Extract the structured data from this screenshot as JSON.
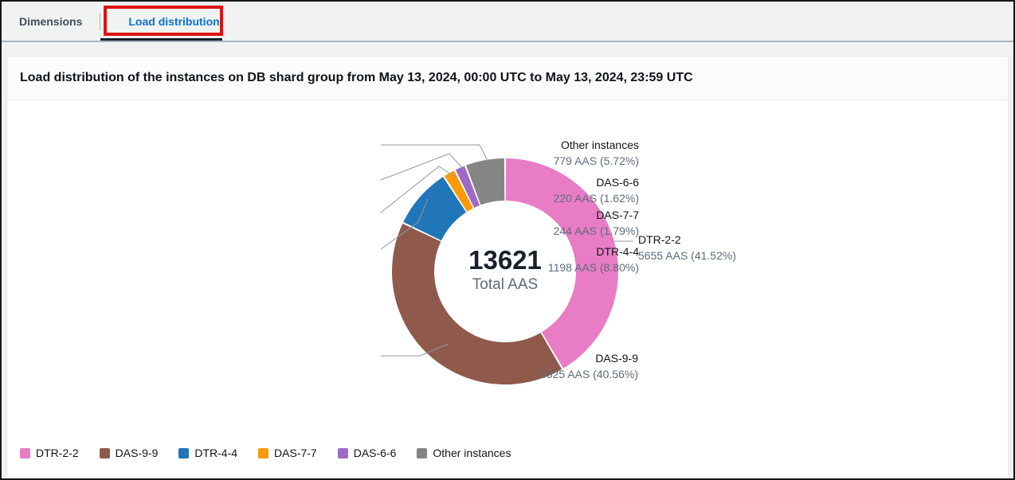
{
  "tabs": [
    {
      "label": "Dimensions",
      "active": false
    },
    {
      "label": "Load distribution",
      "active": true
    }
  ],
  "panel": {
    "title": "Load distribution of the instances on DB shard group from May 13, 2024, 00:00 UTC to May 13, 2024, 23:59 UTC"
  },
  "chart_data": {
    "type": "pie",
    "donut": true,
    "title": "Load distribution of the instances on DB shard group from May 13, 2024, 00:00 UTC to May 13, 2024, 23:59 UTC",
    "unit": "AAS",
    "center": {
      "total": "13621",
      "label": "Total AAS"
    },
    "series": [
      {
        "name": "DTR-2-2",
        "value": 5655,
        "pct": "41.52",
        "color": "#e87dc5"
      },
      {
        "name": "DAS-9-9",
        "value": 5525,
        "pct": "40.56",
        "color": "#8f5a4c"
      },
      {
        "name": "DTR-4-4",
        "value": 1198,
        "pct": "8.80",
        "color": "#2076b8"
      },
      {
        "name": "DAS-7-7",
        "value": 244,
        "pct": "1.79",
        "color": "#fb9908"
      },
      {
        "name": "DAS-6-6",
        "value": 220,
        "pct": "1.62",
        "color": "#9e6ac8"
      },
      {
        "name": "Other instances",
        "value": 779,
        "pct": "5.72",
        "color": "#858585"
      }
    ],
    "legend_position": "bottom-left",
    "leader_line_color": "#8c98a5"
  }
}
